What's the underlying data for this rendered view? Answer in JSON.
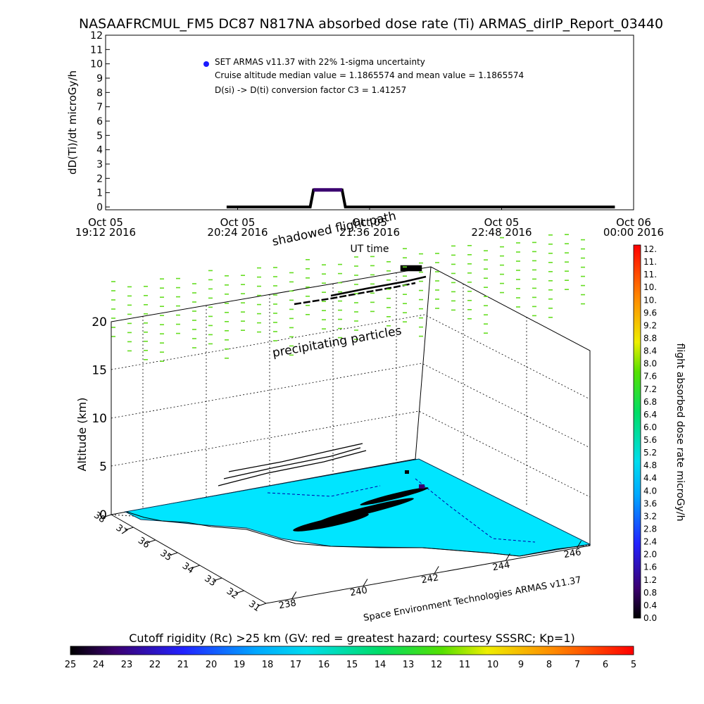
{
  "title": "NASAAFRCMUL_FM5 DC87 N817NA absorbed dose rate (Ti) ARMAS_dirIP_Report_03440",
  "chart_data": [
    {
      "type": "line",
      "ylabel": "dD(Ti)/dt microGy/h",
      "xlabel": "UT time",
      "ylim": [
        0,
        12
      ],
      "yticks": [
        "0",
        "1",
        "2",
        "3",
        "4",
        "5",
        "6",
        "7",
        "8",
        "9",
        "10",
        "11",
        "12"
      ],
      "xticks": [
        {
          "line1": "Oct 05",
          "line2": "19:12 2016"
        },
        {
          "line1": "Oct 05",
          "line2": "20:24 2016"
        },
        {
          "line1": "Oct 05",
          "line2": "21:36 2016"
        },
        {
          "line1": "Oct 05",
          "line2": "22:48 2016"
        },
        {
          "line1": "Oct 06",
          "line2": "00:00 2016"
        }
      ],
      "legend": {
        "marker_color": "#1a1aff",
        "lines": [
          "SET ARMAS v11.37 with 22% 1-sigma uncertainty",
          "Cruise altitude median value = 1.1865574 and mean value = 1.1865574",
          "D(si) -> D(ti) conversion factor C3 = 1.41257"
        ]
      },
      "series": [
        {
          "color": "#000000",
          "x_hours_utc": [
            20.3,
            21.02,
            21.06,
            21.09,
            21.35,
            21.38,
            21.42,
            23.83
          ],
          "values": [
            0,
            0,
            0,
            1.19,
            1.19,
            0,
            0,
            0
          ]
        }
      ]
    },
    {
      "type": "scatter",
      "zlabel": "Altitude (km)",
      "zticks": [
        "0",
        "5",
        "10",
        "15",
        "20"
      ],
      "lat_ticks": [
        "38",
        "37",
        "36",
        "35",
        "34",
        "33",
        "32",
        "31"
      ],
      "lon_ticks": [
        "238",
        "240",
        "242",
        "244",
        "246"
      ],
      "annotations": [
        "shadowed flight path",
        "precipitating particles"
      ],
      "credit": "Space Environment Technologies ARMAS v11.37",
      "map_color": "#00e5ff"
    }
  ],
  "colorbar": {
    "label": "flight absorbed dose rate microGy/h",
    "ticks": [
      "12.",
      "11.",
      "11.",
      "10.",
      "10.",
      "9.6",
      "9.2",
      "8.8",
      "8.4",
      "8.0",
      "7.6",
      "7.2",
      "6.8",
      "6.4",
      "6.0",
      "5.6",
      "5.2",
      "4.8",
      "4.4",
      "4.0",
      "3.6",
      "3.2",
      "2.8",
      "2.4",
      "2.0",
      "1.6",
      "1.2",
      "0.8",
      "0.4",
      "0.0"
    ]
  },
  "cutoff_bar": {
    "title": "Cutoff rigidity (Rc) >25 km (GV: red = greatest hazard; courtesy SSSRC; Kp=1)",
    "ticks": [
      "25",
      "24",
      "23",
      "22",
      "21",
      "20",
      "19",
      "18",
      "17",
      "16",
      "15",
      "14",
      "13",
      "12",
      "11",
      "10",
      "9",
      "8",
      "7",
      "6",
      "5"
    ]
  }
}
